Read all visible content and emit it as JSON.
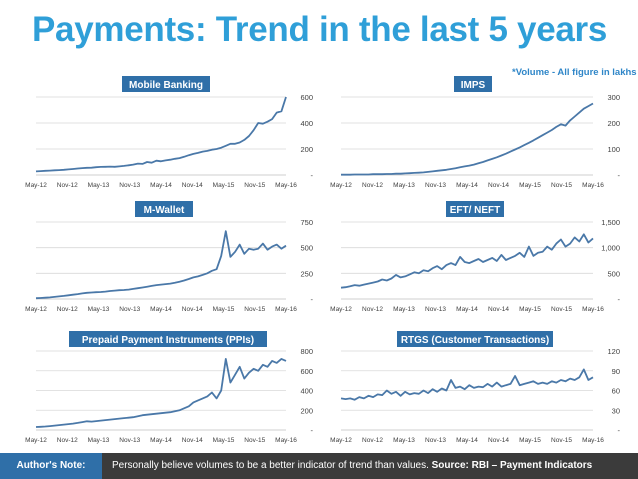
{
  "page": {
    "title": "Payments: Trend in the last 5 years",
    "note": "*Volume - All figure in lakhs"
  },
  "footer": {
    "label": "Author's Note:",
    "text": "Personally believe volumes to be a better indicator of trend than values.",
    "source": "Source: RBI – Payment Indicators"
  },
  "colors": {
    "title": "#2f9fd8",
    "panel_title_bg": "#2f6fa8",
    "line": "#4a78a8",
    "grid": "#d9d9d9"
  },
  "chart_data": [
    {
      "type": "line",
      "title": "Mobile Banking",
      "x_tick_labels": [
        "May-12",
        "Nov-12",
        "May-13",
        "Nov-13",
        "May-14",
        "Nov-14",
        "May-15",
        "Nov-15",
        "May-16"
      ],
      "y_ticks": [
        0,
        200,
        400,
        600
      ],
      "y_tick_labels": [
        "-",
        "200",
        "400",
        "600"
      ],
      "ylim": [
        0,
        600
      ],
      "values": [
        28,
        30,
        32,
        34,
        36,
        38,
        40,
        43,
        46,
        50,
        53,
        55,
        56,
        60,
        62,
        63,
        65,
        63,
        66,
        70,
        75,
        80,
        88,
        85,
        100,
        95,
        110,
        105,
        112,
        118,
        125,
        130,
        140,
        152,
        162,
        170,
        180,
        185,
        195,
        200,
        210,
        225,
        240,
        240,
        250,
        270,
        300,
        345,
        400,
        395,
        410,
        430,
        480,
        490,
        600
      ]
    },
    {
      "type": "line",
      "title": "IMPS",
      "x_tick_labels": [
        "May-12",
        "Nov-12",
        "May-13",
        "Nov-13",
        "May-14",
        "Nov-14",
        "May-15",
        "Nov-15",
        "May-16"
      ],
      "y_ticks": [
        0,
        100,
        200,
        300
      ],
      "y_tick_labels": [
        "-",
        "100",
        "200",
        "300"
      ],
      "ylim": [
        0,
        300
      ],
      "values": [
        1,
        1,
        1,
        2,
        2,
        2,
        2,
        3,
        3,
        3,
        4,
        4,
        5,
        5,
        6,
        7,
        8,
        9,
        10,
        12,
        14,
        16,
        18,
        20,
        23,
        26,
        30,
        33,
        36,
        40,
        45,
        50,
        56,
        62,
        68,
        75,
        82,
        90,
        98,
        106,
        115,
        124,
        133,
        143,
        153,
        163,
        173,
        185,
        195,
        190,
        210,
        225,
        240,
        255,
        265,
        275
      ]
    },
    {
      "type": "line",
      "title": "M-Wallet",
      "x_tick_labels": [
        "May-12",
        "Nov-12",
        "May-13",
        "Nov-13",
        "May-14",
        "Nov-14",
        "May-15",
        "Nov-15",
        "May-16"
      ],
      "y_ticks": [
        0,
        250,
        500,
        750
      ],
      "y_tick_labels": [
        "-",
        "250",
        "500",
        "750"
      ],
      "ylim": [
        0,
        750
      ],
      "values": [
        8,
        10,
        13,
        16,
        20,
        25,
        30,
        36,
        42,
        48,
        55,
        60,
        63,
        66,
        68,
        72,
        78,
        82,
        86,
        88,
        92,
        98,
        105,
        112,
        120,
        128,
        135,
        140,
        145,
        150,
        158,
        168,
        180,
        195,
        210,
        220,
        235,
        250,
        275,
        290,
        420,
        660,
        410,
        460,
        530,
        440,
        490,
        480,
        490,
        540,
        480,
        510,
        530,
        490,
        520
      ]
    },
    {
      "type": "line",
      "title": "EFT/ NEFT",
      "x_tick_labels": [
        "May-12",
        "Nov-12",
        "May-13",
        "Nov-13",
        "May-14",
        "Nov-14",
        "May-15",
        "Nov-15",
        "May-16"
      ],
      "y_ticks": [
        0,
        500,
        1000,
        1500
      ],
      "y_tick_labels": [
        "-",
        "500",
        "1,000",
        "1,500"
      ],
      "ylim": [
        0,
        1500
      ],
      "values": [
        220,
        230,
        250,
        270,
        260,
        280,
        300,
        320,
        340,
        380,
        360,
        400,
        470,
        420,
        440,
        480,
        520,
        500,
        560,
        540,
        600,
        640,
        580,
        660,
        700,
        660,
        820,
        720,
        700,
        740,
        780,
        720,
        760,
        800,
        740,
        860,
        760,
        800,
        840,
        900,
        820,
        1020,
        840,
        900,
        920,
        1020,
        960,
        1080,
        1160,
        1020,
        1080,
        1200,
        1120,
        1260,
        1100,
        1180
      ]
    },
    {
      "type": "line",
      "title": "Prepaid Payment Instruments (PPIs)",
      "x_tick_labels": [
        "May-12",
        "Nov-12",
        "May-13",
        "Nov-13",
        "May-14",
        "Nov-14",
        "May-15",
        "Nov-15",
        "May-16"
      ],
      "y_ticks": [
        0,
        200,
        400,
        600,
        800
      ],
      "y_tick_labels": [
        "-",
        "200",
        "400",
        "600",
        "800"
      ],
      "ylim": [
        0,
        800
      ],
      "values": [
        30,
        32,
        35,
        40,
        45,
        50,
        55,
        60,
        65,
        72,
        80,
        88,
        85,
        90,
        95,
        100,
        105,
        110,
        115,
        120,
        125,
        130,
        140,
        150,
        155,
        160,
        165,
        170,
        175,
        180,
        190,
        200,
        220,
        240,
        280,
        300,
        320,
        340,
        380,
        320,
        400,
        720,
        480,
        560,
        640,
        520,
        580,
        620,
        600,
        660,
        640,
        700,
        680,
        720,
        700
      ]
    },
    {
      "type": "line",
      "title": "RTGS (Customer Transactions)",
      "x_tick_labels": [
        "May-12",
        "Nov-12",
        "May-13",
        "Nov-13",
        "May-14",
        "Nov-14",
        "May-15",
        "Nov-15",
        "May-16"
      ],
      "y_ticks": [
        0,
        30,
        60,
        90,
        120
      ],
      "y_tick_labels": [
        "-",
        "30",
        "60",
        "90",
        "120"
      ],
      "ylim": [
        0,
        120
      ],
      "values": [
        48,
        47,
        48,
        46,
        50,
        48,
        52,
        50,
        54,
        53,
        60,
        55,
        58,
        52,
        58,
        54,
        56,
        55,
        60,
        56,
        62,
        58,
        63,
        60,
        76,
        64,
        66,
        62,
        68,
        64,
        66,
        65,
        70,
        66,
        72,
        66,
        68,
        70,
        82,
        68,
        70,
        72,
        74,
        70,
        72,
        70,
        74,
        72,
        76,
        74,
        78,
        76,
        80,
        92,
        76,
        80
      ]
    }
  ]
}
